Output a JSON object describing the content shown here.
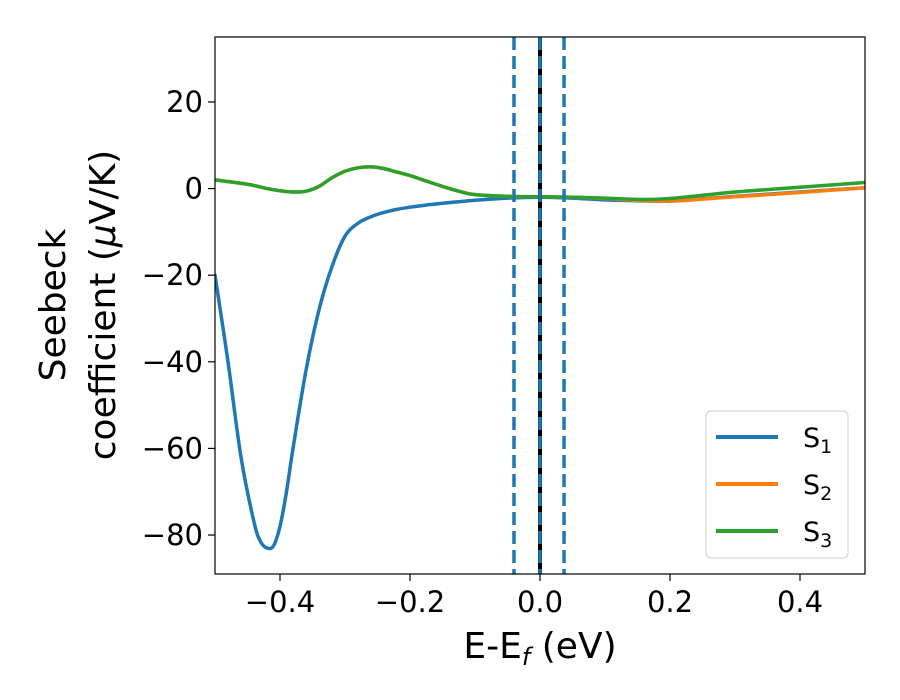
{
  "chart_data": {
    "type": "line",
    "xlabel": "E-E",
    "xlabel_sub": "f",
    "xlabel_unit": " (eV)",
    "ylabel_line1": "Seebeck",
    "ylabel_line2": "coefficient  (",
    "ylabel_mu": "μ",
    "ylabel_unit": "V/K)",
    "xlim": [
      -0.5,
      0.5
    ],
    "ylim": [
      -89,
      35
    ],
    "x_ticks": [
      -0.4,
      -0.2,
      0.0,
      0.2,
      0.4
    ],
    "x_tick_labels": [
      "−0.4",
      "−0.2",
      "0.0",
      "0.2",
      "0.4"
    ],
    "y_ticks": [
      20,
      0,
      -20,
      -40,
      -60,
      -80
    ],
    "y_tick_labels": [
      "20",
      "0",
      "−20",
      "−40",
      "−60",
      "−80"
    ],
    "grid": false,
    "legend_position": "bottom-right",
    "vlines": [
      {
        "x": 0.0,
        "color": "#000000",
        "style": "solid"
      },
      {
        "x": 0.0,
        "color": "#1f77b4",
        "style": "dashed"
      },
      {
        "x": -0.04,
        "color": "#1f77b4",
        "style": "dashed"
      },
      {
        "x": 0.037,
        "color": "#1f77b4",
        "style": "dashed"
      }
    ],
    "series": [
      {
        "name": "S",
        "sub": "1",
        "color": "#1f77b4",
        "x": [
          -0.5,
          -0.48,
          -0.46,
          -0.44,
          -0.43,
          -0.42,
          -0.41,
          -0.4,
          -0.39,
          -0.38,
          -0.36,
          -0.34,
          -0.32,
          -0.3,
          -0.28,
          -0.26,
          -0.24,
          -0.22,
          -0.2,
          -0.18,
          -0.15,
          -0.1,
          -0.05,
          0.0,
          0.05,
          0.1,
          0.15,
          0.2,
          0.3,
          0.4,
          0.5
        ],
        "y": [
          -20,
          -40,
          -62,
          -77,
          -81.5,
          -83,
          -82.5,
          -78,
          -70,
          -60,
          -42,
          -28,
          -18,
          -11,
          -8,
          -6.5,
          -5.5,
          -4.8,
          -4.3,
          -3.9,
          -3.4,
          -2.7,
          -2.2,
          -2.0,
          -2.2,
          -2.6,
          -2.8,
          -2.9,
          -1.8,
          -0.8,
          0.2
        ]
      },
      {
        "name": "S",
        "sub": "2",
        "color": "#ff7f0e",
        "x": [
          -0.5,
          -0.45,
          -0.42,
          -0.4,
          -0.38,
          -0.36,
          -0.34,
          -0.32,
          -0.3,
          -0.28,
          -0.26,
          -0.24,
          -0.22,
          -0.2,
          -0.18,
          -0.15,
          -0.12,
          -0.1,
          -0.05,
          0.0,
          0.05,
          0.1,
          0.15,
          0.2,
          0.3,
          0.4,
          0.5
        ],
        "y": [
          2.0,
          1.0,
          0.0,
          -0.5,
          -0.8,
          -0.6,
          0.5,
          2.5,
          4.0,
          4.8,
          5.0,
          4.6,
          3.8,
          3.0,
          2.0,
          0.5,
          -0.8,
          -1.4,
          -1.8,
          -1.9,
          -2.0,
          -2.3,
          -2.7,
          -2.9,
          -1.9,
          -0.9,
          0.2
        ]
      },
      {
        "name": "S",
        "sub": "3",
        "color": "#2ca02c",
        "x": [
          -0.5,
          -0.45,
          -0.42,
          -0.4,
          -0.38,
          -0.36,
          -0.34,
          -0.32,
          -0.3,
          -0.28,
          -0.26,
          -0.24,
          -0.22,
          -0.2,
          -0.18,
          -0.15,
          -0.12,
          -0.1,
          -0.05,
          0.0,
          0.05,
          0.1,
          0.15,
          0.2,
          0.3,
          0.4,
          0.5
        ],
        "y": [
          2.0,
          1.0,
          0.0,
          -0.5,
          -0.8,
          -0.6,
          0.5,
          2.5,
          4.0,
          4.8,
          5.0,
          4.6,
          3.8,
          3.0,
          2.0,
          0.5,
          -0.8,
          -1.4,
          -1.8,
          -1.9,
          -2.0,
          -2.2,
          -2.5,
          -2.3,
          -0.8,
          0.3,
          1.4
        ]
      }
    ]
  }
}
